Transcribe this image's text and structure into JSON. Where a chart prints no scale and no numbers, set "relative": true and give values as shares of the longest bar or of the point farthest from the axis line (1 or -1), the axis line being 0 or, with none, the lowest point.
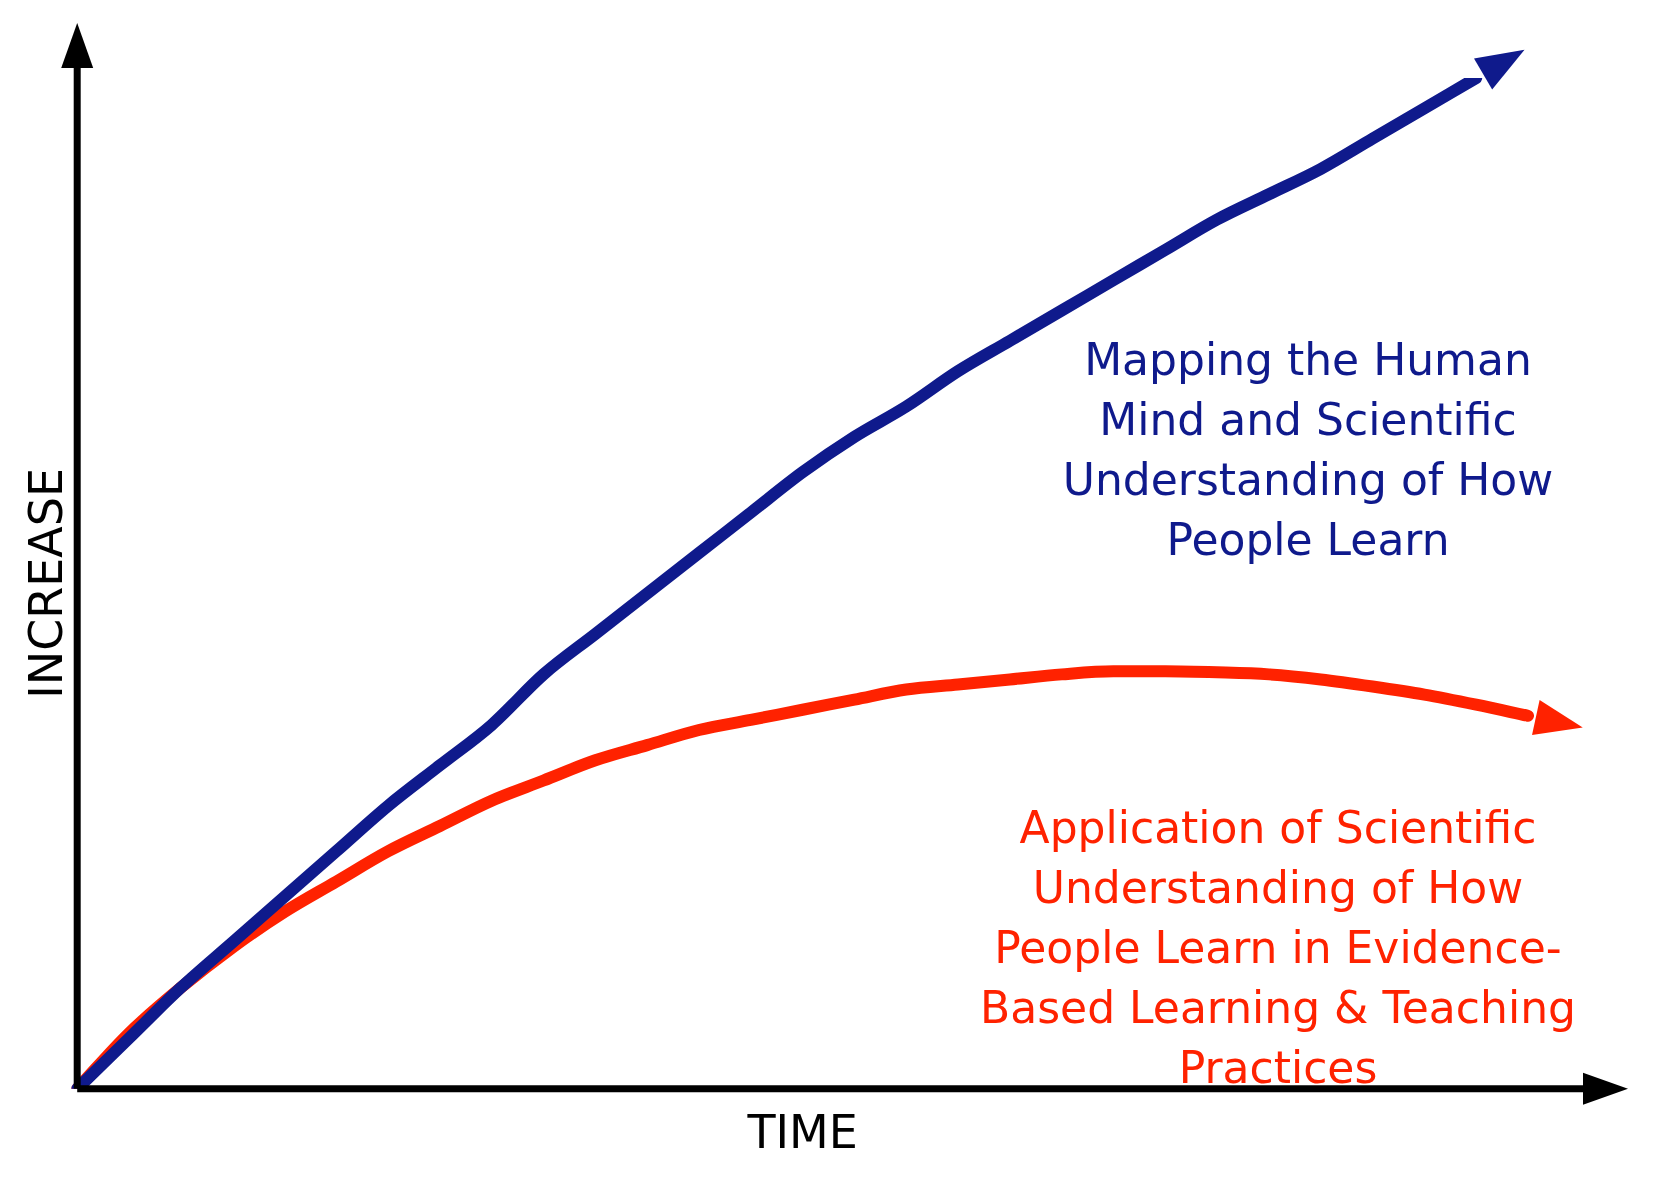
{
  "chart_data": {
    "type": "line",
    "relative": true,
    "xlabel": "TIME",
    "ylabel": "INCREASE",
    "categories": [
      null,
      null,
      null,
      null,
      null,
      null,
      null,
      null,
      null,
      null,
      null,
      null,
      null,
      null,
      null,
      null,
      null,
      null,
      null,
      null,
      null,
      null,
      null,
      null,
      null,
      null,
      null,
      null,
      null
    ],
    "series": [
      {
        "name": "Mapping the Human Mind and Scientific Understanding of How People Learn",
        "color": "#0f1a8c",
        "values": [
          0,
          0.05,
          0.1,
          0.145,
          0.19,
          0.235,
          0.28,
          0.32,
          0.36,
          0.41,
          0.45,
          0.49,
          0.53,
          0.57,
          0.61,
          0.645,
          0.675,
          0.71,
          0.74,
          0.77,
          0.8,
          0.83,
          0.86,
          0.885,
          0.91,
          0.94,
          0.97,
          1,
          null
        ]
      },
      {
        "name": "Application of Scientific Understanding of How People Learn in Evidence-Based Learning & Teaching Practices",
        "color": "#ff2200",
        "values": [
          0,
          0.055,
          0.1,
          0.14,
          0.175,
          0.205,
          0.235,
          0.26,
          0.285,
          0.305,
          0.325,
          0.34,
          0.355,
          0.365,
          0.375,
          0.385,
          0.395,
          0.4,
          0.405,
          0.41,
          0.413,
          0.413,
          0.412,
          0.41,
          0.405,
          0.398,
          0.39,
          0.38,
          0.369
        ]
      }
    ],
    "legend": false,
    "grid": false,
    "marker": "none",
    "line_style": "solid"
  }
}
